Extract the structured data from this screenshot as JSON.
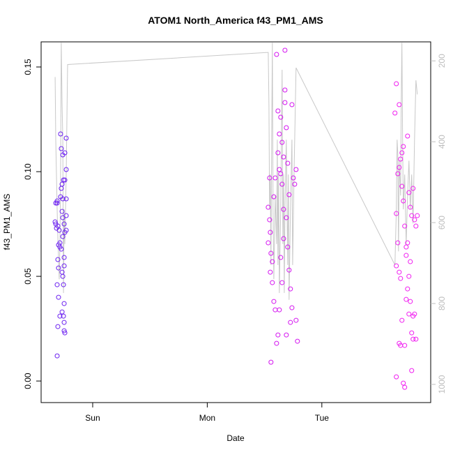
{
  "chart_data": {
    "type": "scatter",
    "title": "ATOM1 North_America f43_PM1_AMS",
    "xlabel": "Date",
    "ylabel": "f43_PM1_AMS",
    "xlim": [
      -0.45,
      2.95
    ],
    "xticks": [
      {
        "value": 0,
        "label": "Sun"
      },
      {
        "value": 1,
        "label": "Mon"
      },
      {
        "value": 2,
        "label": "Tue"
      }
    ],
    "ylim": [
      -0.0103,
      0.162
    ],
    "yticks": [
      {
        "value": 0,
        "label": "0.00"
      },
      0.05,
      {
        "value": 0.1,
        "label": "0.10"
      },
      0.15
    ],
    "y2lim": [
      1045,
      153
    ],
    "y2ticks": [
      200,
      400,
      600,
      800,
      1000
    ],
    "y2_color": "#bdbdbd",
    "series": [
      {
        "color": "#6a1ef0",
        "x": [
          -0.322,
          -0.31,
          -0.328,
          -0.322,
          -0.316,
          -0.304,
          -0.298,
          -0.286,
          -0.28,
          -0.274,
          -0.261,
          -0.243,
          -0.231,
          -0.231,
          -0.255,
          -0.243,
          -0.267,
          -0.274,
          -0.28,
          -0.261,
          -0.231,
          -0.267,
          -0.261,
          -0.231,
          -0.249,
          -0.243,
          -0.231,
          -0.286,
          -0.274,
          -0.249,
          -0.304,
          -0.249,
          -0.298,
          -0.267,
          -0.261,
          -0.31,
          -0.255,
          -0.298,
          -0.249,
          -0.267,
          -0.286,
          -0.255,
          -0.304,
          -0.249,
          -0.249,
          -0.243,
          -0.31,
          -0.31,
          -0.261,
          -0.292
        ],
        "values": [
          0.085,
          0.086,
          0.076,
          0.075,
          0.073,
          0.074,
          0.065,
          0.064,
          0.118,
          0.111,
          0.108,
          0.109,
          0.116,
          0.101,
          0.096,
          0.096,
          0.094,
          0.092,
          0.088,
          0.087,
          0.087,
          0.081,
          0.078,
          0.079,
          0.075,
          0.071,
          0.072,
          0.066,
          0.063,
          0.059,
          0.058,
          0.055,
          0.054,
          0.052,
          0.05,
          0.046,
          0.046,
          0.04,
          0.037,
          0.033,
          0.031,
          0.031,
          0.026,
          0.028,
          0.024,
          0.023,
          0.012,
          0.085,
          0.069,
          0.072
        ]
      },
      {
        "color": "#d414f0",
        "x": [
          1.544,
          1.532,
          1.544,
          1.55,
          1.532,
          1.556,
          1.55,
          1.556,
          1.568,
          1.581,
          1.593,
          1.605,
          1.605,
          1.617,
          1.629,
          1.641,
          1.653,
          1.666,
          1.617,
          1.629,
          1.641,
          1.653,
          1.666,
          1.678,
          1.678,
          1.69,
          1.69,
          1.678,
          1.702,
          1.702,
          1.714,
          1.714,
          1.726,
          1.726,
          1.739,
          1.739,
          1.751,
          1.763,
          1.775,
          1.787,
          1.775,
          1.641,
          1.653,
          1.617,
          1.629,
          1.666,
          1.69,
          1.593,
          1.581,
          1.568
        ],
        "values": [
          0.097,
          0.083,
          0.077,
          0.071,
          0.066,
          0.061,
          0.052,
          0.009,
          0.047,
          0.038,
          0.034,
          0.018,
          0.156,
          0.129,
          0.118,
          0.126,
          0.114,
          0.107,
          0.109,
          0.101,
          0.099,
          0.094,
          0.082,
          0.139,
          0.133,
          0.121,
          0.078,
          0.158,
          0.104,
          0.064,
          0.089,
          0.053,
          0.044,
          0.028,
          0.132,
          0.035,
          0.097,
          0.094,
          0.101,
          0.019,
          0.029,
          0.059,
          0.047,
          0.022,
          0.034,
          0.068,
          0.022,
          0.097,
          0.088,
          0.057
        ]
      },
      {
        "color": "#f01ef0",
        "x": [
          2.65,
          2.638,
          2.675,
          2.663,
          2.675,
          2.687,
          2.699,
          2.711,
          2.65,
          2.663,
          2.675,
          2.65,
          2.687,
          2.699,
          2.711,
          2.723,
          2.736,
          2.748,
          2.76,
          2.772,
          2.784,
          2.796,
          2.809,
          2.821,
          2.833,
          2.736,
          2.748,
          2.76,
          2.772,
          2.784,
          2.796,
          2.809,
          2.821,
          2.65,
          2.675,
          2.687,
          2.699,
          2.711,
          2.723,
          2.736,
          2.748,
          2.784,
          2.772,
          2.76,
          2.796,
          2.723
        ],
        "values": [
          0.142,
          0.128,
          0.132,
          0.099,
          0.102,
          0.106,
          0.109,
          0.112,
          0.08,
          0.066,
          0.052,
          0.055,
          0.049,
          0.093,
          0.086,
          0.074,
          0.064,
          0.117,
          0.09,
          0.083,
          0.079,
          0.092,
          0.077,
          0.074,
          0.079,
          0.039,
          0.044,
          0.032,
          0.038,
          0.023,
          0.02,
          0.032,
          0.02,
          0.002,
          0.018,
          0.017,
          0.029,
          -0.001,
          0.017,
          0.06,
          0.066,
          0.005,
          0.057,
          0.05,
          0.031,
          -0.003
        ]
      },
      {
        "color": "#c8c8c8",
        "axis": "y2",
        "mode": "line",
        "x": [
          -0.328,
          -0.322,
          -0.31,
          -0.304,
          -0.292,
          -0.286,
          -0.28,
          -0.274,
          -0.267,
          -0.261,
          -0.255,
          -0.249,
          -0.243,
          -0.231,
          -0.219,
          1.532,
          1.538,
          1.544,
          1.55,
          1.556,
          1.562,
          1.568,
          1.574,
          1.581,
          1.593,
          1.605,
          1.611,
          1.617,
          1.623,
          1.629,
          1.641,
          1.653,
          1.66,
          1.666,
          1.672,
          1.678,
          1.69,
          1.702,
          1.708,
          1.714,
          1.726,
          1.739,
          1.745,
          1.757,
          1.775,
          2.638,
          2.65,
          2.657,
          2.663,
          2.669,
          2.675,
          2.687,
          2.693,
          2.699,
          2.705,
          2.711,
          2.723,
          2.736,
          2.748,
          2.76,
          2.772,
          2.784,
          2.796,
          2.809,
          2.821,
          2.833
        ],
        "values": [
          240,
          395,
          567,
          636,
          740,
          653,
          481,
          155,
          309,
          395,
          774,
          567,
          653,
          481,
          209,
          179,
          309,
          567,
          481,
          705,
          395,
          155,
          567,
          740,
          533,
          653,
          395,
          705,
          481,
          774,
          567,
          222,
          653,
          481,
          774,
          567,
          395,
          705,
          481,
          791,
          567,
          395,
          705,
          481,
          217,
          705,
          567,
          395,
          429,
          671,
          447,
          533,
          309,
          155,
          395,
          567,
          481,
          653,
          533,
          447,
          567,
          481,
          602,
          395,
          248,
          283
        ]
      }
    ]
  }
}
